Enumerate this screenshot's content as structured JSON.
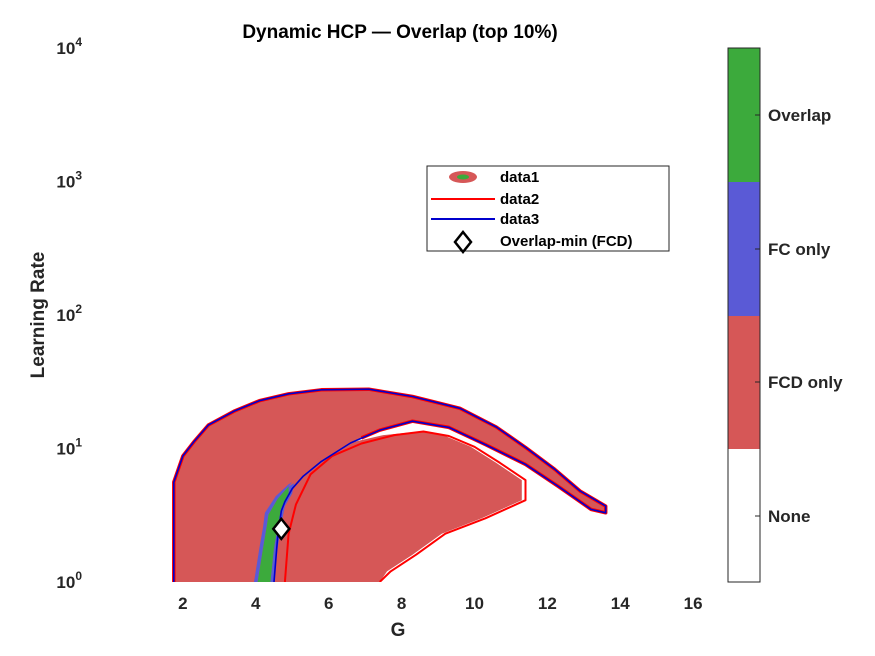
{
  "chart_data": {
    "type": "contour",
    "title": "Dynamic HCP — Overlap (top 10%)",
    "xlabel": "G",
    "ylabel": "Learning Rate",
    "xlim": [
      0,
      16.6
    ],
    "ylim": [
      1,
      10000
    ],
    "yscale": "log",
    "x_ticks": [
      "2",
      "4",
      "6",
      "8",
      "10",
      "12",
      "14",
      "16"
    ],
    "y_ticks": [
      {
        "base": "10",
        "exp": "0"
      },
      {
        "base": "10",
        "exp": "1"
      },
      {
        "base": "10",
        "exp": "2"
      },
      {
        "base": "10",
        "exp": "3"
      },
      {
        "base": "10",
        "exp": "4"
      }
    ],
    "colors": {
      "none": "#ffffff",
      "fcd_only": "#d65757",
      "fc_only": "#5a5ad6",
      "overlap": "#3caa3c",
      "fcd_contour": "#ff0000",
      "fc_contour": "#0000cc"
    },
    "colorbar": {
      "categories": [
        "None",
        "FCD only",
        "FC only",
        "Overlap"
      ],
      "values": [
        0,
        1,
        2,
        3
      ]
    },
    "legend": {
      "placement": "inside-upper-right",
      "entries": [
        "data1",
        "data2",
        "data3",
        "Overlap-min (FCD)"
      ]
    },
    "regions": {
      "fc_outer": [
        [
          1.75,
          1
        ],
        [
          1.75,
          5.6
        ],
        [
          2.0,
          8.8
        ],
        [
          2.3,
          11.2
        ],
        [
          2.7,
          15
        ],
        [
          3.4,
          19
        ],
        [
          4.1,
          22.8
        ],
        [
          4.9,
          25.7
        ],
        [
          5.8,
          27.5
        ],
        [
          7.1,
          27.8
        ],
        [
          8.3,
          24.5
        ],
        [
          9.6,
          20
        ],
        [
          10.6,
          14.5
        ],
        [
          11.4,
          10.2
        ],
        [
          12.2,
          7.0
        ],
        [
          12.9,
          4.8
        ],
        [
          13.6,
          3.7
        ],
        [
          13.6,
          3.3
        ],
        [
          13.2,
          3.5
        ],
        [
          12.3,
          5.2
        ],
        [
          11.4,
          7.6
        ],
        [
          10.3,
          10.7
        ],
        [
          9.3,
          14.4
        ],
        [
          8.3,
          16.0
        ],
        [
          7.4,
          13.7
        ],
        [
          6.7,
          11.3
        ],
        [
          6.0,
          8.4
        ],
        [
          5.4,
          6.0
        ],
        [
          4.9,
          4.6
        ],
        [
          4.6,
          3.6
        ],
        [
          4.4,
          2.5
        ],
        [
          4.3,
          1.6
        ],
        [
          4.2,
          1
        ]
      ],
      "fcd_region": [
        [
          4.3,
          1
        ],
        [
          4.4,
          2.3
        ],
        [
          4.7,
          3.8
        ],
        [
          5.2,
          6.4
        ],
        [
          5.8,
          8.8
        ],
        [
          6.5,
          10.9
        ],
        [
          7.5,
          12.6
        ],
        [
          8.5,
          13.4
        ],
        [
          9.2,
          12.4
        ],
        [
          9.9,
          10.3
        ],
        [
          10.6,
          7.8
        ],
        [
          11.3,
          5.8
        ],
        [
          11.3,
          4.1
        ],
        [
          10.2,
          3.0
        ],
        [
          9.1,
          2.3
        ],
        [
          8.3,
          1.6
        ],
        [
          7.6,
          1.2
        ],
        [
          7.4,
          1
        ]
      ],
      "fcd_contour_outer": [
        [
          1.75,
          1
        ],
        [
          1.75,
          5.6
        ],
        [
          2.0,
          8.8
        ],
        [
          2.3,
          11.2
        ],
        [
          2.7,
          15
        ],
        [
          3.4,
          19
        ],
        [
          4.1,
          22.8
        ],
        [
          4.9,
          25.7
        ],
        [
          5.8,
          27.5
        ],
        [
          7.1,
          27.8
        ],
        [
          8.3,
          24.5
        ],
        [
          9.6,
          20
        ],
        [
          10.6,
          14.5
        ],
        [
          11.4,
          10.2
        ],
        [
          12.2,
          7.0
        ],
        [
          12.9,
          4.8
        ],
        [
          13.6,
          3.7
        ],
        [
          13.6,
          3.3
        ],
        [
          13.2,
          3.5
        ],
        [
          12.3,
          5.2
        ],
        [
          11.4,
          7.6
        ],
        [
          10.3,
          10.7
        ],
        [
          9.3,
          14.4
        ],
        [
          8.3,
          16.0
        ],
        [
          7.4,
          13.7
        ],
        [
          6.9,
          12.0
        ]
      ],
      "fcd_contour_inner": [
        [
          4.8,
          1
        ],
        [
          4.9,
          2.3
        ],
        [
          5.1,
          3.8
        ],
        [
          5.5,
          6.4
        ],
        [
          6.1,
          8.8
        ],
        [
          6.9,
          10.9
        ],
        [
          7.8,
          12.6
        ],
        [
          8.6,
          13.4
        ],
        [
          9.3,
          12.4
        ],
        [
          10.0,
          10.3
        ],
        [
          10.7,
          7.8
        ],
        [
          11.4,
          5.8
        ],
        [
          11.4,
          4.1
        ],
        [
          10.3,
          3.0
        ],
        [
          9.2,
          2.3
        ],
        [
          8.4,
          1.6
        ],
        [
          7.7,
          1.2
        ],
        [
          7.4,
          1
        ]
      ],
      "fc_contour_outer": [
        [
          1.75,
          1
        ],
        [
          1.75,
          5.6
        ],
        [
          2.0,
          8.8
        ],
        [
          2.3,
          11.2
        ],
        [
          2.7,
          15
        ],
        [
          3.4,
          19
        ],
        [
          4.1,
          22.8
        ],
        [
          4.9,
          25.7
        ],
        [
          5.8,
          27.5
        ],
        [
          7.1,
          27.8
        ],
        [
          8.3,
          24.5
        ],
        [
          9.6,
          20
        ],
        [
          10.6,
          14.5
        ],
        [
          11.4,
          10.2
        ],
        [
          12.2,
          7.0
        ],
        [
          12.9,
          4.8
        ],
        [
          13.6,
          3.7
        ],
        [
          13.6,
          3.3
        ],
        [
          13.2,
          3.5
        ],
        [
          12.3,
          5.2
        ],
        [
          11.4,
          7.6
        ],
        [
          10.3,
          10.7
        ],
        [
          9.3,
          14.4
        ],
        [
          8.3,
          16.0
        ],
        [
          7.4,
          13.7
        ],
        [
          6.6,
          11.0
        ],
        [
          5.8,
          8.0
        ],
        [
          5.3,
          6.2
        ],
        [
          5.0,
          5.0
        ],
        [
          4.8,
          4.0
        ],
        [
          4.7,
          3.4
        ],
        [
          4.6,
          2.2
        ],
        [
          4.5,
          1
        ]
      ],
      "overlap": [
        [
          4.05,
          1
        ],
        [
          4.2,
          1.8
        ],
        [
          4.3,
          2.6
        ],
        [
          4.35,
          3.2
        ],
        [
          4.6,
          4.2
        ],
        [
          4.9,
          5.2
        ],
        [
          4.9,
          4.4
        ],
        [
          4.7,
          3.6
        ],
        [
          4.6,
          2.6
        ],
        [
          4.5,
          1.8
        ],
        [
          4.4,
          1
        ]
      ],
      "fc_only_strip_left": [
        [
          3.95,
          1
        ],
        [
          4.1,
          1.8
        ],
        [
          4.2,
          2.6
        ],
        [
          4.25,
          3.3
        ],
        [
          4.55,
          4.4
        ],
        [
          4.9,
          5.4
        ],
        [
          5.0,
          5.6
        ],
        [
          4.9,
          5.2
        ],
        [
          4.6,
          4.2
        ],
        [
          4.35,
          3.2
        ],
        [
          4.3,
          2.6
        ],
        [
          4.2,
          1.8
        ],
        [
          4.05,
          1
        ]
      ],
      "fc_only_strip_right": [
        [
          4.9,
          4.4
        ],
        [
          4.9,
          5.2
        ],
        [
          5.05,
          5.5
        ],
        [
          5.0,
          4.6
        ],
        [
          4.8,
          3.7
        ],
        [
          4.7,
          2.7
        ],
        [
          4.6,
          1.8
        ],
        [
          4.5,
          1
        ],
        [
          4.4,
          1
        ],
        [
          4.5,
          1.8
        ],
        [
          4.6,
          2.6
        ],
        [
          4.7,
          3.6
        ]
      ]
    },
    "marker": {
      "label": "Overlap-min (FCD)",
      "x": 4.7,
      "y": 2.5
    }
  }
}
